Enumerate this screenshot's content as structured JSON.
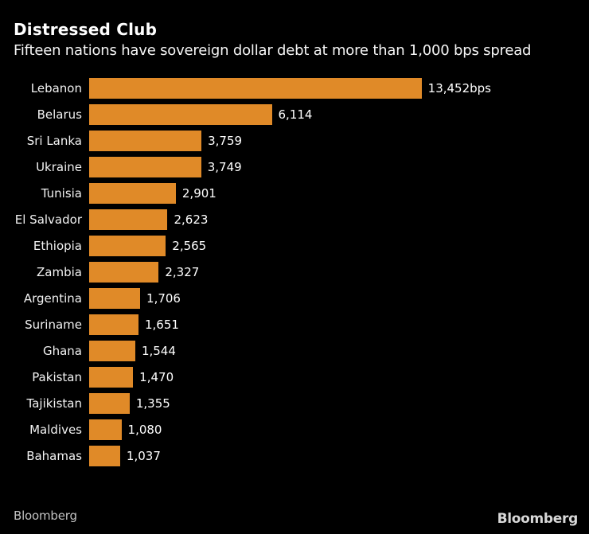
{
  "header": {
    "title": "Distressed Club",
    "subtitle": "Fifteen nations have sovereign dollar debt at more than 1,000 bps spread"
  },
  "chart_data": {
    "type": "bar",
    "orientation": "horizontal",
    "title": "Distressed Club",
    "subtitle": "Fifteen nations have sovereign dollar debt at more than 1,000 bps spread",
    "categories": [
      "Lebanon",
      "Belarus",
      "Sri Lanka",
      "Ukraine",
      "Tunisia",
      "El Salvador",
      "Ethiopia",
      "Zambia",
      "Argentina",
      "Suriname",
      "Ghana",
      "Pakistan",
      "Tajikistan",
      "Maldives",
      "Bahamas"
    ],
    "values": [
      13452,
      6114,
      3759,
      3749,
      2901,
      2623,
      2565,
      2327,
      1706,
      1651,
      1544,
      1470,
      1355,
      1080,
      1037
    ],
    "value_labels": [
      "13,452bps",
      "6,114",
      "3,759",
      "3,749",
      "2,901",
      "2,623",
      "2,565",
      "2,327",
      "1,706",
      "1,651",
      "1,544",
      "1,470",
      "1,355",
      "1,080",
      "1,037"
    ],
    "unit": "bps",
    "xlim": [
      0,
      13452
    ],
    "grid": false,
    "legend": false,
    "bar_color": "#e08a28"
  },
  "colors": {
    "background": "#000000",
    "bar": "#e08a28",
    "label_text": "#f2f2f2",
    "value_text": "#ffffff",
    "source_text": "#c2c2c2",
    "logo_text": "#d8d8d8"
  },
  "footer": {
    "source": "Bloomberg",
    "logo": "Bloomberg"
  }
}
